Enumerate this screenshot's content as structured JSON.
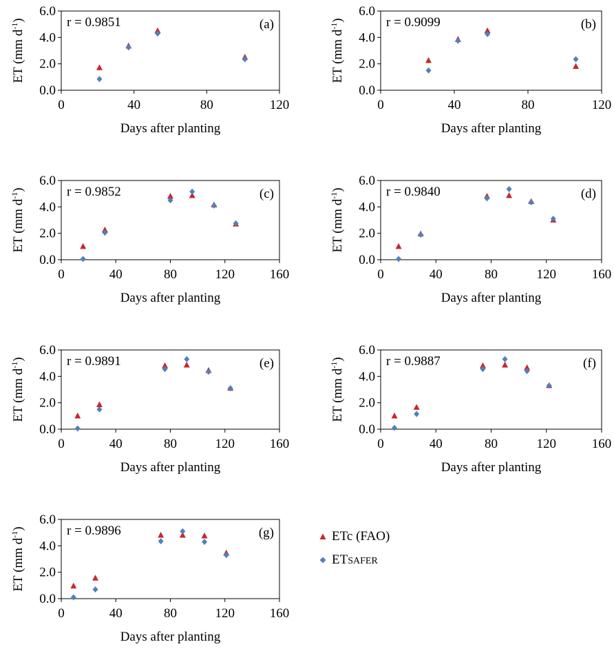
{
  "legend": {
    "fao_label": "ETc (FAO)",
    "safer_prefix": "ET",
    "safer_suffix": "SAFER"
  },
  "colors": {
    "fao": "#C8272D",
    "safer": "#4F81BD"
  },
  "chart_data": [
    {
      "type": "scatter",
      "panel": "(a)",
      "r_label": "r = 0.9851",
      "xlabel": "Days after planting",
      "ylabel": "ET (mm d-1)",
      "xlim": [
        0,
        120
      ],
      "ylim": [
        0,
        6
      ],
      "xticks": [
        0,
        40,
        80,
        120
      ],
      "yticks": [
        "0.0",
        "2.0",
        "4.0",
        "6.0"
      ],
      "series": [
        {
          "name": "ETc (FAO)",
          "points": [
            [
              21,
              1.7
            ],
            [
              37,
              3.35
            ],
            [
              53,
              4.5
            ],
            [
              101,
              2.5
            ]
          ]
        },
        {
          "name": "ETSAFER",
          "points": [
            [
              21,
              0.85
            ],
            [
              37,
              3.25
            ],
            [
              53,
              4.3
            ],
            [
              101,
              2.35
            ]
          ]
        }
      ]
    },
    {
      "type": "scatter",
      "panel": "(b)",
      "r_label": "r = 0.9099",
      "xlabel": "Days after planting",
      "ylabel": "ET (mm d-1)",
      "xlim": [
        0,
        120
      ],
      "ylim": [
        0,
        6
      ],
      "xticks": [
        0,
        40,
        80,
        120
      ],
      "yticks": [
        "0.0",
        "2.0",
        "4.0",
        "6.0"
      ],
      "series": [
        {
          "name": "ETc (FAO)",
          "points": [
            [
              26,
              2.25
            ],
            [
              42,
              3.85
            ],
            [
              58,
              4.5
            ],
            [
              106,
              1.8
            ]
          ]
        },
        {
          "name": "ETSAFER",
          "points": [
            [
              26,
              1.5
            ],
            [
              42,
              3.75
            ],
            [
              58,
              4.25
            ],
            [
              106,
              2.35
            ]
          ]
        }
      ]
    },
    {
      "type": "scatter",
      "panel": "(c)",
      "r_label": "r = 0.9852",
      "xlabel": "Days after planting",
      "ylabel": "ET (mm d-1)",
      "xlim": [
        0,
        160
      ],
      "ylim": [
        0,
        6
      ],
      "xticks": [
        0,
        40,
        80,
        120,
        160
      ],
      "yticks": [
        "0.0",
        "2.0",
        "4.0",
        "6.0"
      ],
      "series": [
        {
          "name": "ETc (FAO)",
          "points": [
            [
              16,
              1.0
            ],
            [
              32,
              2.25
            ],
            [
              80,
              4.8
            ],
            [
              96,
              4.85
            ],
            [
              112,
              4.15
            ],
            [
              128,
              2.7
            ]
          ]
        },
        {
          "name": "ETSAFER",
          "points": [
            [
              16,
              0.05
            ],
            [
              32,
              2.05
            ],
            [
              80,
              4.5
            ],
            [
              96,
              5.15
            ],
            [
              112,
              4.1
            ],
            [
              128,
              2.75
            ]
          ]
        }
      ]
    },
    {
      "type": "scatter",
      "panel": "(d)",
      "r_label": "r = 0.9840",
      "xlabel": "Days after planting",
      "ylabel": "ET (mm d-1)",
      "xlim": [
        0,
        160
      ],
      "ylim": [
        0,
        6
      ],
      "xticks": [
        0,
        40,
        80,
        120,
        160
      ],
      "yticks": [
        "0.0",
        "2.0",
        "4.0",
        "6.0"
      ],
      "series": [
        {
          "name": "ETc (FAO)",
          "points": [
            [
              13,
              1.0
            ],
            [
              29,
              1.95
            ],
            [
              77,
              4.8
            ],
            [
              93,
              4.85
            ],
            [
              109,
              4.4
            ],
            [
              125,
              3.0
            ]
          ]
        },
        {
          "name": "ETSAFER",
          "points": [
            [
              13,
              0.05
            ],
            [
              29,
              1.9
            ],
            [
              77,
              4.65
            ],
            [
              93,
              5.35
            ],
            [
              109,
              4.35
            ],
            [
              125,
              3.1
            ]
          ]
        }
      ]
    },
    {
      "type": "scatter",
      "panel": "(e)",
      "r_label": "r = 0.9891",
      "xlabel": "Days after planting",
      "ylabel": "ET (mm d-1)",
      "xlim": [
        0,
        160
      ],
      "ylim": [
        0,
        6
      ],
      "xticks": [
        0,
        40,
        80,
        120,
        160
      ],
      "yticks": [
        "0.0",
        "2.0",
        "4.0",
        "6.0"
      ],
      "series": [
        {
          "name": "ETc (FAO)",
          "points": [
            [
              12,
              1.0
            ],
            [
              28,
              1.85
            ],
            [
              76,
              4.8
            ],
            [
              92,
              4.85
            ],
            [
              108,
              4.45
            ],
            [
              124,
              3.1
            ]
          ]
        },
        {
          "name": "ETSAFER",
          "points": [
            [
              12,
              0.05
            ],
            [
              28,
              1.5
            ],
            [
              76,
              4.55
            ],
            [
              92,
              5.3
            ],
            [
              108,
              4.35
            ],
            [
              124,
              3.1
            ]
          ]
        }
      ]
    },
    {
      "type": "scatter",
      "panel": "(f)",
      "r_label": "r = 0.9887",
      "xlabel": "Days after planting",
      "ylabel": "ET (mm d-1)",
      "xlim": [
        0,
        160
      ],
      "ylim": [
        0,
        6
      ],
      "xticks": [
        0,
        40,
        80,
        120,
        160
      ],
      "yticks": [
        "0.0",
        "2.0",
        "4.0",
        "6.0"
      ],
      "series": [
        {
          "name": "ETc (FAO)",
          "points": [
            [
              10,
              1.0
            ],
            [
              26,
              1.65
            ],
            [
              74,
              4.8
            ],
            [
              90,
              4.85
            ],
            [
              106,
              4.65
            ],
            [
              122,
              3.3
            ]
          ]
        },
        {
          "name": "ETSAFER",
          "points": [
            [
              10,
              0.1
            ],
            [
              26,
              1.15
            ],
            [
              74,
              4.55
            ],
            [
              90,
              5.3
            ],
            [
              106,
              4.4
            ],
            [
              122,
              3.3
            ]
          ]
        }
      ]
    },
    {
      "type": "scatter",
      "panel": "(g)",
      "r_label": "r = 0.9896",
      "xlabel": "Days after planting",
      "ylabel": "ET (mm d-1)",
      "xlim": [
        0,
        160
      ],
      "ylim": [
        0,
        6
      ],
      "xticks": [
        0,
        40,
        80,
        120,
        160
      ],
      "yticks": [
        "0.0",
        "2.0",
        "4.0",
        "6.0"
      ],
      "series": [
        {
          "name": "ETc (FAO)",
          "points": [
            [
              9,
              0.95
            ],
            [
              25,
              1.55
            ],
            [
              73,
              4.8
            ],
            [
              89,
              4.8
            ],
            [
              105,
              4.75
            ],
            [
              121,
              3.45
            ]
          ]
        },
        {
          "name": "ETSAFER",
          "points": [
            [
              9,
              0.1
            ],
            [
              25,
              0.7
            ],
            [
              73,
              4.35
            ],
            [
              89,
              5.1
            ],
            [
              105,
              4.3
            ],
            [
              121,
              3.3
            ]
          ]
        }
      ]
    }
  ]
}
